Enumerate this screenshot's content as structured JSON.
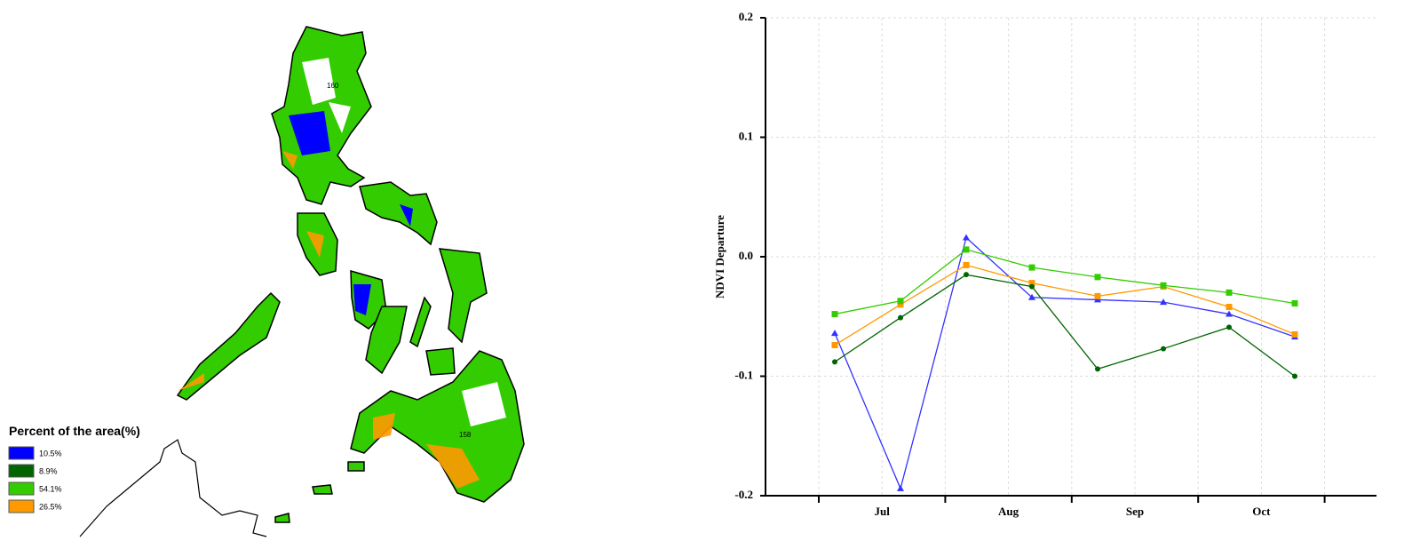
{
  "map": {
    "legend_title": "Percent of the area(%)",
    "items": [
      {
        "color": "#0000ff",
        "value": 10.5,
        "label": "10.5%"
      },
      {
        "color": "#006400",
        "value": 8.9,
        "label": "8.9%"
      },
      {
        "color": "#33cc00",
        "value": 54.1,
        "label": "54.1%"
      },
      {
        "color": "#ff9900",
        "value": 26.5,
        "label": "26.5%"
      }
    ],
    "annotations": [
      "160",
      "158"
    ]
  },
  "chart_data": {
    "type": "line",
    "y_label": "NDVI Departure",
    "categories": [
      "Jul",
      null,
      "Aug",
      null,
      "Sep",
      null,
      "Oct",
      null
    ],
    "ylim": [
      -0.2,
      0.2
    ],
    "yticks": [
      -0.2,
      -0.1,
      {
        "value": 0,
        "label": "0.0"
      },
      0.1,
      0.2
    ],
    "grid": true,
    "series": [
      {
        "color": "#3333ff",
        "marker": "triangle",
        "values": [
          -0.064,
          -0.194,
          0.016,
          -0.034,
          -0.036,
          -0.038,
          -0.048,
          -0.067
        ]
      },
      {
        "color": "#ff9900",
        "marker": "square",
        "values": [
          -0.074,
          -0.04,
          -0.007,
          -0.022,
          -0.033,
          -0.025,
          -0.042,
          -0.065
        ]
      },
      {
        "color": "#33cc00",
        "marker": "square",
        "values": [
          -0.048,
          -0.037,
          0.006,
          -0.009,
          -0.017,
          -0.024,
          -0.03,
          -0.039
        ]
      },
      {
        "color": "#006400",
        "marker": "circle",
        "values": [
          -0.088,
          -0.051,
          -0.015,
          -0.025,
          -0.094,
          -0.077,
          -0.059,
          -0.1
        ]
      }
    ]
  }
}
